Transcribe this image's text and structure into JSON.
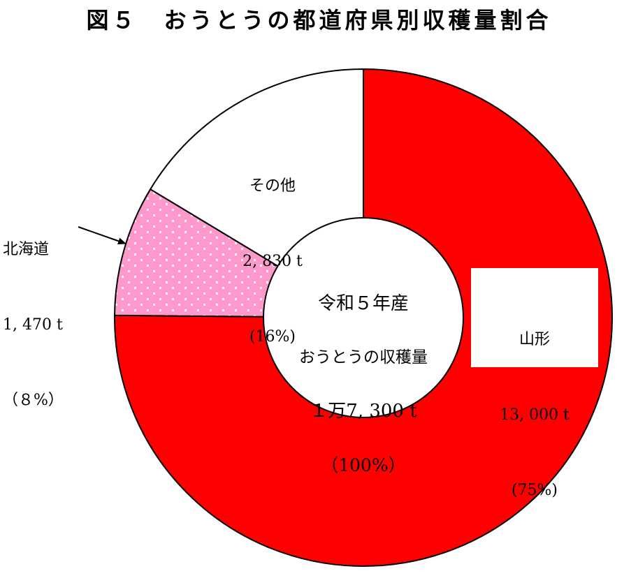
{
  "chart_data": {
    "type": "pie",
    "title": "図５　おうとうの都道府県別収穫量割合",
    "center_label": {
      "line1": "令和５年産",
      "line2": "おうとうの収穫量",
      "line3": "１万7, 300 t",
      "line4": "（100%）"
    },
    "slices": [
      {
        "name": "山形",
        "value": 13000,
        "value_label": "13, 000 t",
        "percent": 75,
        "percent_label": "(75%)",
        "color": "#ff0000",
        "pattern": "solid"
      },
      {
        "name": "北海道",
        "value": 1470,
        "value_label": "1, 470 t",
        "percent": 8,
        "percent_label": "（８%）",
        "color": "#ff99cc",
        "pattern": "dotted"
      },
      {
        "name": "その他",
        "value": 2830,
        "value_label": "2, 830 t",
        "percent": 16,
        "percent_label": "(16%)",
        "color": "#ffffff",
        "pattern": "solid"
      }
    ],
    "start_angle": "12 o'clock",
    "direction": "clockwise",
    "donut": true,
    "legend": "none"
  }
}
